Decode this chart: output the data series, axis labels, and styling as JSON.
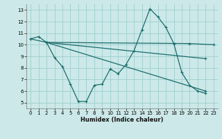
{
  "title": "",
  "xlabel": "Humidex (Indice chaleur)",
  "background_color": "#cce8e8",
  "grid_color": "#9ecece",
  "line_color": "#1a6b6b",
  "xlim": [
    -0.5,
    23.5
  ],
  "ylim": [
    4.5,
    13.5
  ],
  "xticks": [
    0,
    1,
    2,
    3,
    4,
    5,
    6,
    7,
    8,
    9,
    10,
    11,
    12,
    13,
    14,
    15,
    16,
    17,
    18,
    19,
    20,
    21,
    22,
    23
  ],
  "yticks": [
    5,
    6,
    7,
    8,
    9,
    10,
    11,
    12,
    13
  ],
  "series0": {
    "x": [
      0,
      1,
      2,
      3,
      4,
      5,
      6,
      7,
      8,
      9,
      10,
      11,
      12,
      13,
      14,
      15,
      16,
      17,
      18,
      19,
      20,
      21,
      22
    ],
    "y": [
      10.5,
      10.7,
      10.2,
      8.9,
      8.1,
      6.6,
      5.1,
      5.1,
      6.5,
      6.6,
      7.9,
      7.5,
      8.3,
      9.5,
      11.3,
      13.1,
      12.4,
      11.5,
      10.1,
      7.6,
      6.5,
      6.0,
      5.8
    ]
  },
  "series1": {
    "x": [
      0,
      2,
      20,
      23
    ],
    "y": [
      10.5,
      10.2,
      10.1,
      10.0
    ]
  },
  "series2": {
    "x": [
      2,
      22
    ],
    "y": [
      10.2,
      6.0
    ]
  },
  "series3": {
    "x": [
      2,
      22
    ],
    "y": [
      10.2,
      8.8
    ]
  }
}
